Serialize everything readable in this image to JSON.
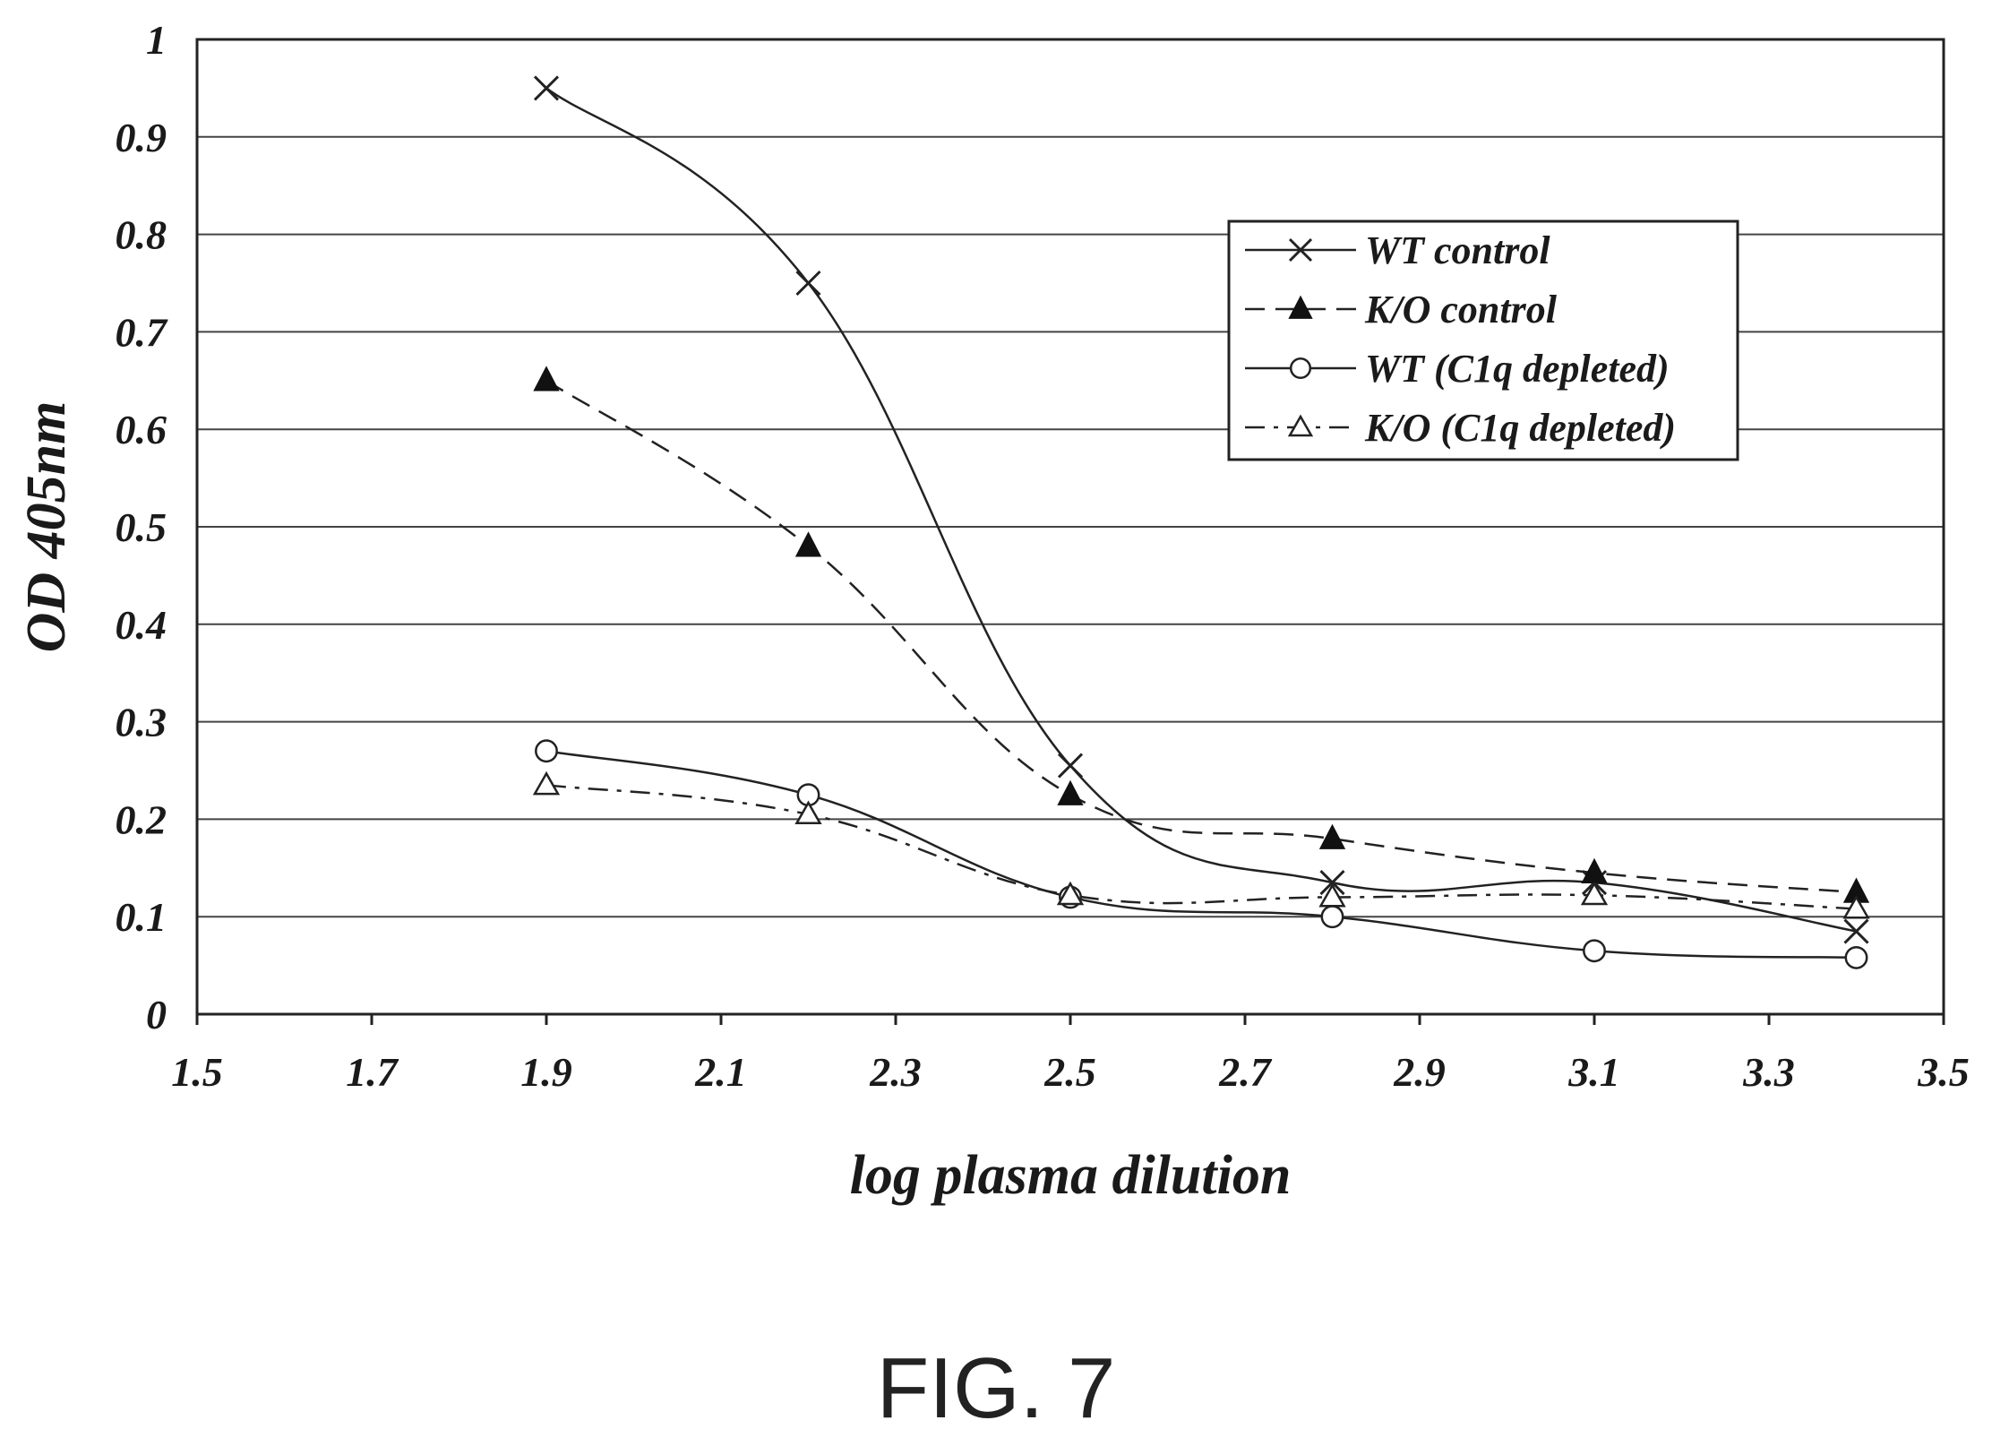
{
  "figure_caption": "FIG. 7",
  "chart_data": {
    "type": "line",
    "title": "",
    "xlabel": "log plasma dilution",
    "ylabel": "OD 405nm",
    "xlim": [
      1.5,
      3.5
    ],
    "ylim": [
      0,
      1
    ],
    "x_ticks": [
      "1.5",
      "1.7",
      "1.9",
      "2.1",
      "2.3",
      "2.5",
      "2.7",
      "2.9",
      "3.1",
      "3.3",
      "3.5"
    ],
    "y_ticks": [
      "0",
      "0.1",
      "0.2",
      "0.3",
      "0.4",
      "0.5",
      "0.6",
      "0.7",
      "0.8",
      "0.9",
      "1"
    ],
    "grid": "horizontal",
    "legend_position": "top-right",
    "x": [
      1.9,
      2.2,
      2.5,
      2.8,
      3.1,
      3.4
    ],
    "series": [
      {
        "name": "WT control",
        "values": [
          0.95,
          0.75,
          0.255,
          0.135,
          0.135,
          0.085
        ],
        "marker": "x",
        "line": "solid"
      },
      {
        "name": "K/O control",
        "values": [
          0.65,
          0.48,
          0.225,
          0.18,
          0.145,
          0.125
        ],
        "marker": "filled-triangle",
        "line": "dashed"
      },
      {
        "name": "WT (C1q depleted)",
        "values": [
          0.27,
          0.225,
          0.12,
          0.1,
          0.065,
          0.058
        ],
        "marker": "open-circle",
        "line": "solid"
      },
      {
        "name": "K/O (C1q depleted)",
        "values": [
          0.235,
          0.205,
          0.122,
          0.12,
          0.122,
          0.108
        ],
        "marker": "open-triangle",
        "line": "dash-dot"
      }
    ]
  }
}
